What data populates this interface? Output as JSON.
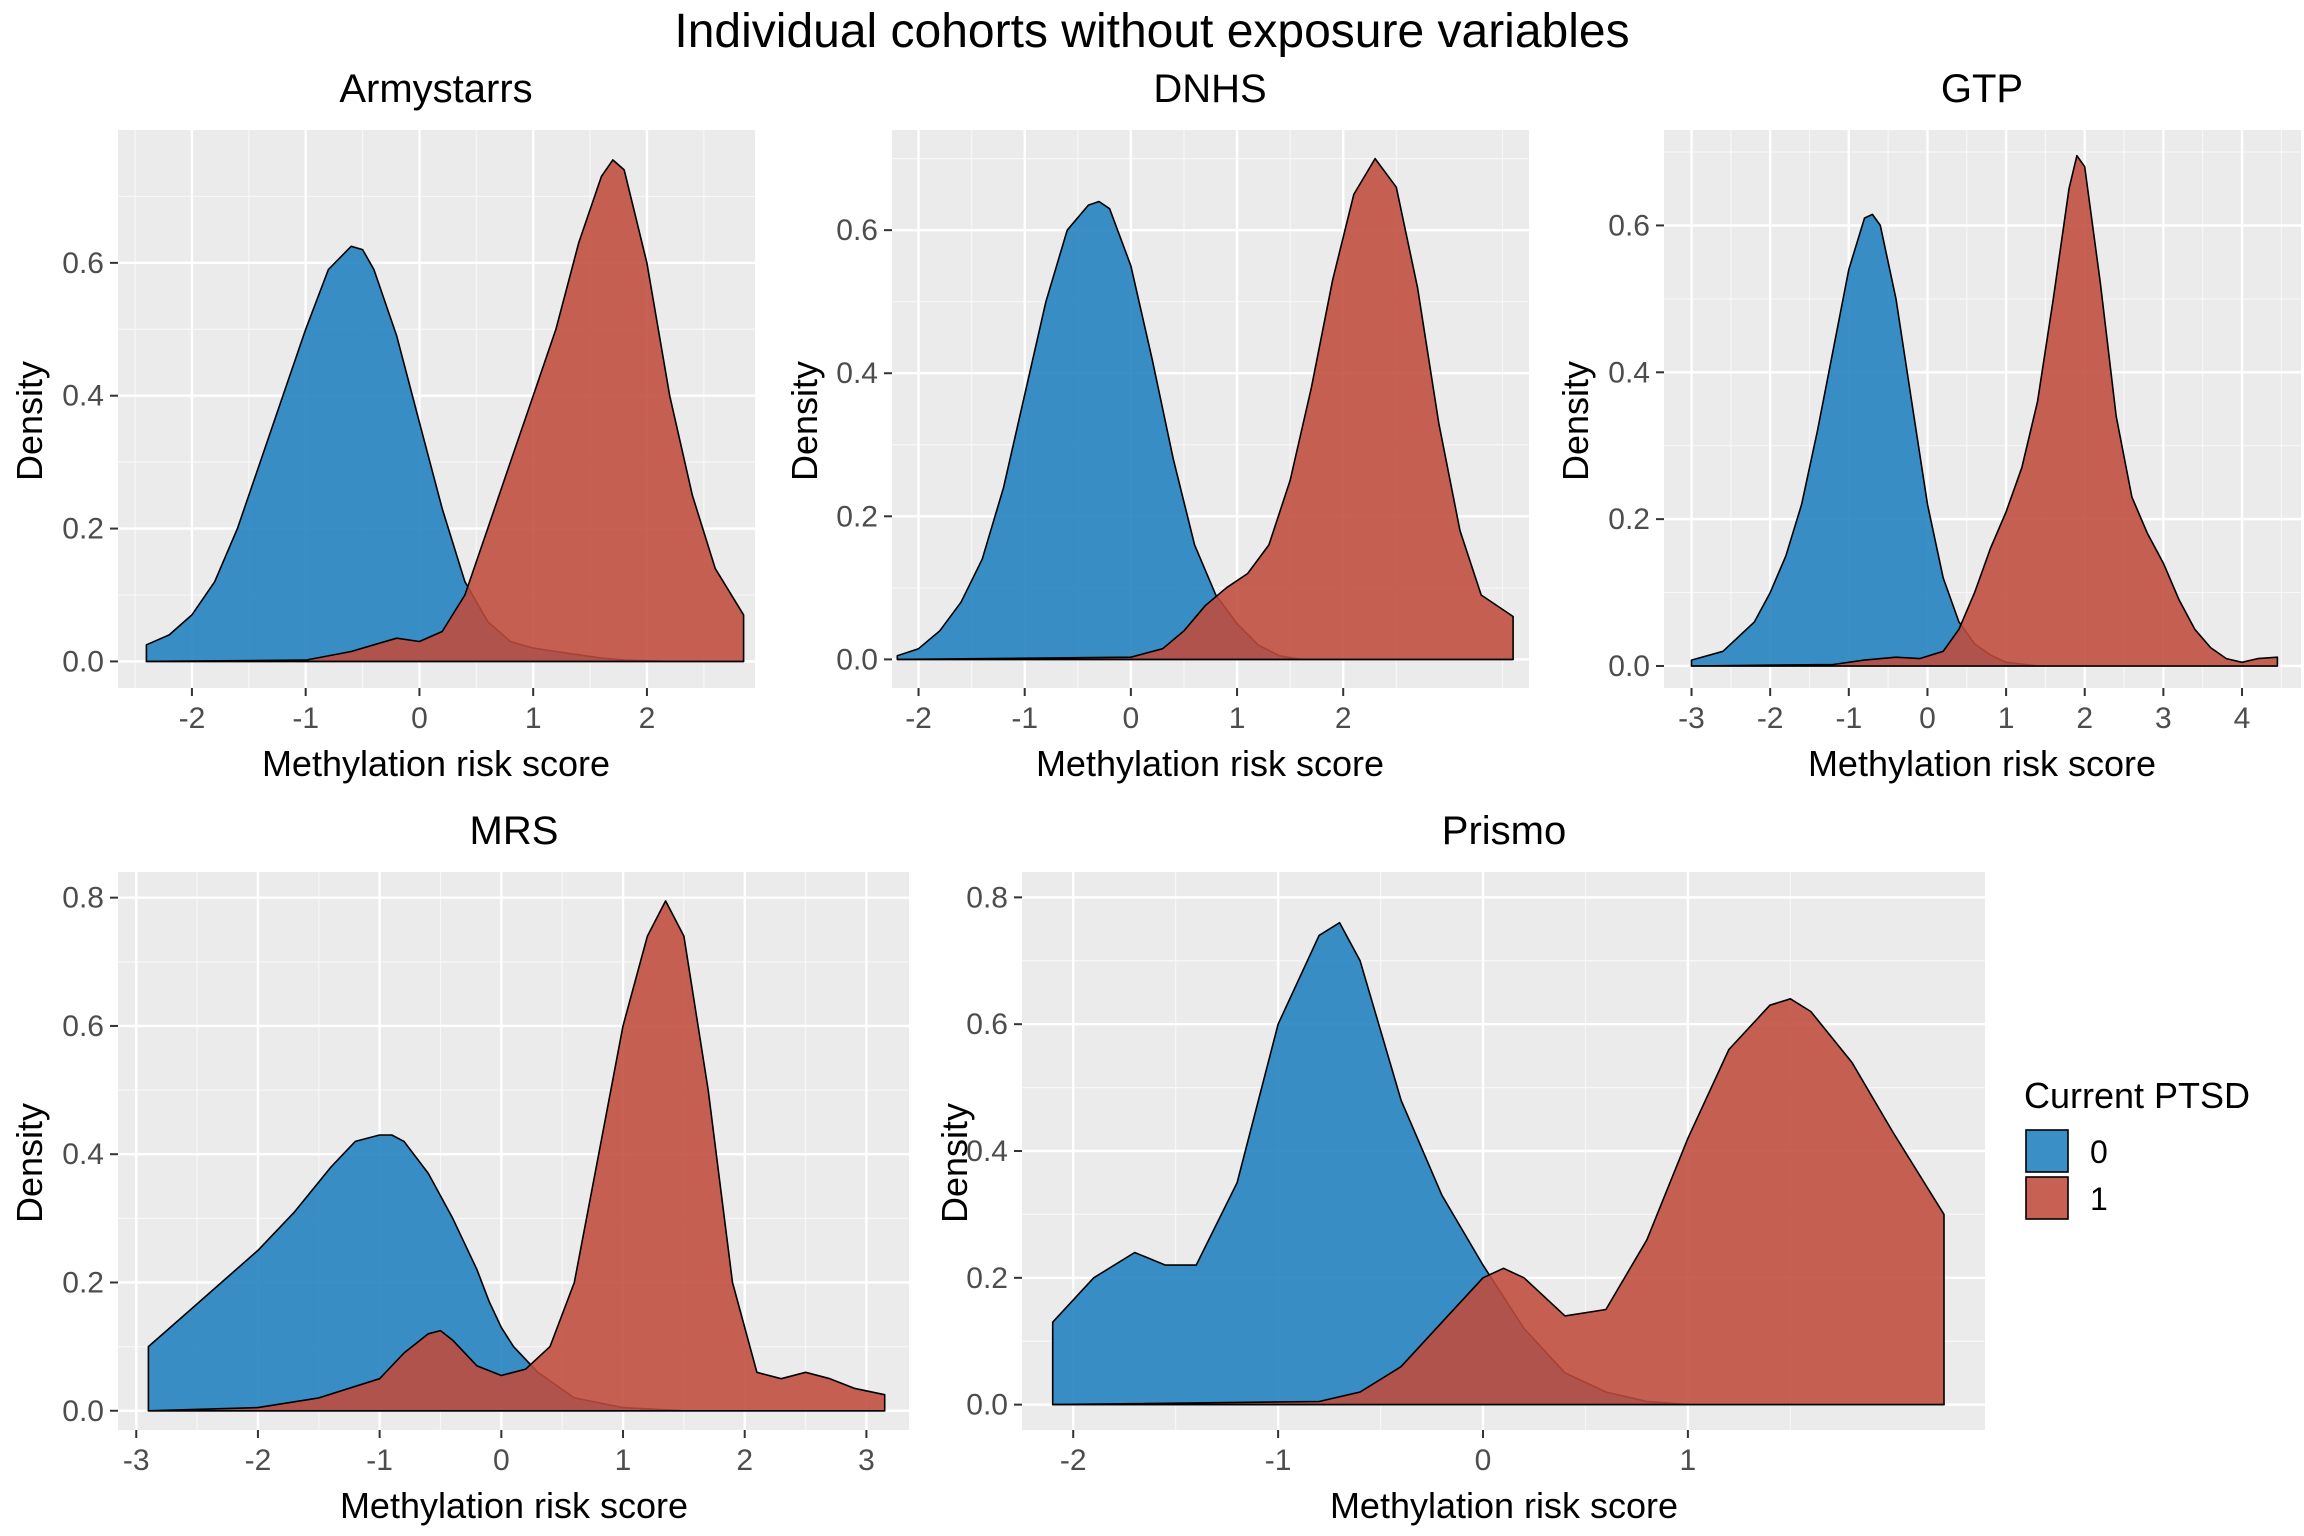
{
  "title": "Individual cohorts without exposure variables",
  "legend": {
    "title": "Current PTSD",
    "items": [
      {
        "label": "0",
        "color": "#1f7fbf"
      },
      {
        "label": "1",
        "color": "#bf4b3b"
      }
    ]
  },
  "chart_data": [
    {
      "type": "area",
      "title": "Armystarrs",
      "xlabel": "Methylation risk score",
      "ylabel": "Density",
      "xlim": [
        -2.65,
        2.95
      ],
      "ylim": [
        -0.04,
        0.8
      ],
      "xticks": [
        -2,
        -1,
        0,
        1,
        2
      ],
      "yticks": [
        0.0,
        0.2,
        0.4,
        0.6
      ],
      "ytick_labels": [
        "0.0",
        "0.2",
        "0.4",
        "0.6"
      ],
      "series": [
        {
          "name": "0",
          "x": [
            -2.4,
            -2.2,
            -2.0,
            -1.8,
            -1.6,
            -1.4,
            -1.2,
            -1.0,
            -0.8,
            -0.6,
            -0.5,
            -0.4,
            -0.2,
            0.0,
            0.2,
            0.4,
            0.6,
            0.8,
            1.0,
            1.2,
            1.4,
            1.6,
            1.8,
            2.0,
            2.2,
            2.5,
            2.85
          ],
          "y": [
            0.025,
            0.04,
            0.07,
            0.12,
            0.2,
            0.3,
            0.4,
            0.5,
            0.59,
            0.625,
            0.62,
            0.59,
            0.49,
            0.36,
            0.23,
            0.12,
            0.06,
            0.03,
            0.02,
            0.015,
            0.01,
            0.005,
            0.002,
            0.001,
            0.0,
            0.0,
            0.0
          ]
        },
        {
          "name": "1",
          "x": [
            -2.4,
            -1.0,
            -0.6,
            -0.4,
            -0.2,
            0.0,
            0.2,
            0.4,
            0.6,
            0.8,
            1.0,
            1.2,
            1.4,
            1.6,
            1.7,
            1.8,
            2.0,
            2.2,
            2.4,
            2.6,
            2.85
          ],
          "y": [
            0.0,
            0.002,
            0.015,
            0.025,
            0.035,
            0.03,
            0.045,
            0.1,
            0.2,
            0.3,
            0.4,
            0.5,
            0.63,
            0.73,
            0.755,
            0.74,
            0.6,
            0.4,
            0.25,
            0.14,
            0.07
          ]
        }
      ]
    },
    {
      "type": "area",
      "title": "DNHS",
      "xlabel": "Methylation risk score",
      "ylabel": "Density",
      "xlim": [
        -2.25,
        3.75
      ],
      "ylim": [
        -0.04,
        0.74
      ],
      "xticks": [
        -2,
        -1,
        0,
        1,
        2
      ],
      "yticks": [
        0.0,
        0.2,
        0.4,
        0.6
      ],
      "ytick_labels": [
        "0.0",
        "0.2",
        "0.4",
        "0.6"
      ],
      "series": [
        {
          "name": "0",
          "x": [
            -2.2,
            -2.0,
            -1.8,
            -1.6,
            -1.4,
            -1.2,
            -1.0,
            -0.8,
            -0.6,
            -0.4,
            -0.3,
            -0.2,
            0.0,
            0.2,
            0.4,
            0.6,
            0.8,
            1.0,
            1.2,
            1.4,
            1.6,
            3.6
          ],
          "y": [
            0.005,
            0.015,
            0.04,
            0.08,
            0.14,
            0.24,
            0.37,
            0.5,
            0.6,
            0.635,
            0.64,
            0.63,
            0.55,
            0.42,
            0.28,
            0.16,
            0.09,
            0.05,
            0.02,
            0.005,
            0.0,
            0.0
          ]
        },
        {
          "name": "1",
          "x": [
            -2.2,
            0.0,
            0.3,
            0.5,
            0.7,
            0.9,
            1.1,
            1.3,
            1.5,
            1.7,
            1.9,
            2.1,
            2.3,
            2.5,
            2.7,
            2.9,
            3.1,
            3.3,
            3.6
          ],
          "y": [
            0.0,
            0.003,
            0.015,
            0.04,
            0.075,
            0.1,
            0.12,
            0.16,
            0.25,
            0.38,
            0.53,
            0.65,
            0.7,
            0.66,
            0.52,
            0.33,
            0.18,
            0.09,
            0.06
          ]
        }
      ]
    },
    {
      "type": "area",
      "title": "GTP",
      "xlabel": "Methylation risk score",
      "ylabel": "Density",
      "xlim": [
        -3.35,
        4.75
      ],
      "ylim": [
        -0.03,
        0.73
      ],
      "xticks": [
        -3,
        -2,
        -1,
        0,
        1,
        2,
        3,
        4
      ],
      "yticks": [
        0.0,
        0.2,
        0.4,
        0.6
      ],
      "ytick_labels": [
        "0.0",
        "0.2",
        "0.4",
        "0.6"
      ],
      "series": [
        {
          "name": "0",
          "x": [
            -3.0,
            -2.6,
            -2.2,
            -2.0,
            -1.8,
            -1.6,
            -1.4,
            -1.2,
            -1.0,
            -0.8,
            -0.7,
            -0.6,
            -0.4,
            -0.2,
            0.0,
            0.2,
            0.4,
            0.6,
            0.8,
            1.0,
            1.4,
            4.45
          ],
          "y": [
            0.008,
            0.02,
            0.06,
            0.1,
            0.15,
            0.22,
            0.32,
            0.43,
            0.54,
            0.61,
            0.615,
            0.6,
            0.5,
            0.36,
            0.22,
            0.12,
            0.06,
            0.03,
            0.015,
            0.005,
            0.0,
            0.0
          ]
        },
        {
          "name": "1",
          "x": [
            -3.0,
            -1.2,
            -0.8,
            -0.4,
            -0.1,
            0.2,
            0.4,
            0.6,
            0.8,
            1.0,
            1.2,
            1.4,
            1.6,
            1.8,
            1.9,
            2.0,
            2.2,
            2.4,
            2.6,
            2.8,
            3.0,
            3.2,
            3.4,
            3.6,
            3.8,
            4.0,
            4.2,
            4.45
          ],
          "y": [
            0.0,
            0.002,
            0.008,
            0.012,
            0.01,
            0.02,
            0.05,
            0.1,
            0.16,
            0.21,
            0.27,
            0.36,
            0.5,
            0.65,
            0.695,
            0.68,
            0.52,
            0.34,
            0.23,
            0.18,
            0.14,
            0.09,
            0.05,
            0.025,
            0.01,
            0.005,
            0.01,
            0.012
          ]
        }
      ]
    },
    {
      "type": "area",
      "title": "MRS",
      "xlabel": "Methylation risk score",
      "ylabel": "Density",
      "xlim": [
        -3.15,
        3.35
      ],
      "ylim": [
        -0.03,
        0.84
      ],
      "xticks": [
        -3,
        -2,
        -1,
        0,
        1,
        2,
        3
      ],
      "yticks": [
        0.0,
        0.2,
        0.4,
        0.6,
        0.8
      ],
      "ytick_labels": [
        "0.0",
        "0.2",
        "0.4",
        "0.6",
        "0.8"
      ],
      "series": [
        {
          "name": "0",
          "x": [
            -2.9,
            -2.6,
            -2.3,
            -2.0,
            -1.7,
            -1.4,
            -1.2,
            -1.0,
            -0.9,
            -0.8,
            -0.6,
            -0.4,
            -0.2,
            -0.1,
            0.0,
            0.1,
            0.3,
            0.6,
            1.0,
            1.5,
            3.15
          ],
          "y": [
            0.1,
            0.15,
            0.2,
            0.25,
            0.31,
            0.38,
            0.42,
            0.43,
            0.43,
            0.42,
            0.37,
            0.3,
            0.22,
            0.17,
            0.13,
            0.1,
            0.06,
            0.02,
            0.005,
            0.0,
            0.0
          ]
        },
        {
          "name": "1",
          "x": [
            -2.9,
            -2.0,
            -1.5,
            -1.0,
            -0.8,
            -0.6,
            -0.5,
            -0.4,
            -0.2,
            0.0,
            0.2,
            0.4,
            0.6,
            0.8,
            1.0,
            1.2,
            1.35,
            1.5,
            1.7,
            1.9,
            2.1,
            2.3,
            2.5,
            2.7,
            2.9,
            3.15
          ],
          "y": [
            0.0,
            0.005,
            0.02,
            0.05,
            0.09,
            0.12,
            0.125,
            0.11,
            0.07,
            0.055,
            0.065,
            0.1,
            0.2,
            0.4,
            0.6,
            0.74,
            0.795,
            0.74,
            0.5,
            0.2,
            0.06,
            0.05,
            0.06,
            0.05,
            0.035,
            0.025
          ]
        }
      ]
    },
    {
      "type": "area",
      "title": "Prismo",
      "xlabel": "Methylation risk score",
      "ylabel": "Density",
      "xlim": [
        -2.25,
        2.45
      ],
      "ylim": [
        -0.04,
        0.84
      ],
      "xticks": [
        -2,
        -1,
        0,
        1
      ],
      "yticks": [
        0.0,
        0.2,
        0.4,
        0.6,
        0.8
      ],
      "ytick_labels": [
        "0.0",
        "0.2",
        "0.4",
        "0.6",
        "0.8"
      ],
      "series": [
        {
          "name": "0",
          "x": [
            -2.1,
            -1.9,
            -1.7,
            -1.55,
            -1.4,
            -1.2,
            -1.0,
            -0.8,
            -0.7,
            -0.6,
            -0.4,
            -0.2,
            0.0,
            0.2,
            0.4,
            0.6,
            0.8,
            1.0,
            2.25
          ],
          "y": [
            0.13,
            0.2,
            0.24,
            0.22,
            0.22,
            0.35,
            0.6,
            0.74,
            0.76,
            0.7,
            0.48,
            0.33,
            0.22,
            0.12,
            0.05,
            0.02,
            0.005,
            0.0,
            0.0
          ]
        },
        {
          "name": "1",
          "x": [
            -2.1,
            -0.8,
            -0.6,
            -0.4,
            -0.2,
            0.0,
            0.1,
            0.2,
            0.4,
            0.6,
            0.8,
            1.0,
            1.2,
            1.4,
            1.5,
            1.6,
            1.8,
            2.0,
            2.25
          ],
          "y": [
            0.0,
            0.005,
            0.02,
            0.06,
            0.13,
            0.2,
            0.215,
            0.2,
            0.14,
            0.15,
            0.26,
            0.42,
            0.56,
            0.63,
            0.64,
            0.62,
            0.54,
            0.43,
            0.3
          ]
        }
      ]
    }
  ]
}
